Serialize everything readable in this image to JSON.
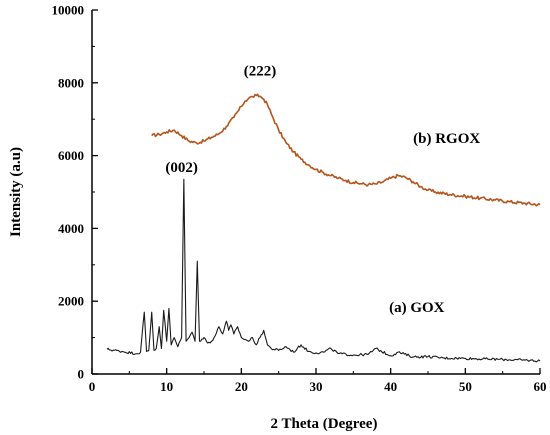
{
  "chart_data": {
    "type": "line",
    "title": "",
    "xlabel": "2 Theta (Degree)",
    "ylabel": "Intensity (a.u)",
    "xlim": [
      0,
      60
    ],
    "ylim": [
      0,
      10000
    ],
    "x_ticks": [
      0,
      10,
      20,
      30,
      40,
      50,
      60
    ],
    "y_ticks": [
      0,
      2000,
      4000,
      6000,
      8000,
      10000
    ],
    "grid": false,
    "legend": "none",
    "annotations": [
      {
        "text": "(222)",
        "x": 22.5,
        "y": 8200
      },
      {
        "text": "(002)",
        "x": 12.0,
        "y": 5550
      },
      {
        "text": "(b) RGOX",
        "x": 47.5,
        "y": 6350
      },
      {
        "text": "(a) GOX",
        "x": 43.5,
        "y": 1700
      }
    ],
    "series": [
      {
        "name": "(b) RGOX",
        "color": "#b5541c",
        "x": [
          8,
          9,
          10,
          11,
          12,
          13,
          14,
          15,
          16,
          17,
          18,
          19,
          20,
          20.5,
          21,
          21.5,
          22,
          22.5,
          23,
          23.5,
          24,
          25,
          26,
          27,
          28,
          29,
          30,
          31,
          32,
          33,
          34,
          35,
          36,
          37,
          38,
          39,
          40,
          41,
          42,
          43,
          44,
          45,
          46,
          48,
          50,
          52,
          54,
          56,
          58,
          60
        ],
        "y": [
          6550,
          6580,
          6650,
          6700,
          6550,
          6400,
          6350,
          6400,
          6500,
          6600,
          6800,
          7050,
          7350,
          7500,
          7580,
          7620,
          7650,
          7630,
          7550,
          7400,
          7150,
          6700,
          6350,
          6100,
          5900,
          5750,
          5620,
          5530,
          5450,
          5380,
          5320,
          5260,
          5230,
          5200,
          5220,
          5280,
          5380,
          5450,
          5400,
          5280,
          5150,
          5050,
          5000,
          4930,
          4880,
          4830,
          4780,
          4730,
          4690,
          4650
        ]
      },
      {
        "name": "(a) GOX",
        "color": "#1a1a1a",
        "x": [
          2,
          4,
          6,
          6.5,
          7,
          7.3,
          7.6,
          8,
          8.3,
          8.6,
          9,
          9.3,
          9.6,
          10,
          10.3,
          10.6,
          11,
          11.5,
          12,
          12.3,
          12.6,
          13,
          13.4,
          13.8,
          14.1,
          14.4,
          15,
          15.5,
          16,
          16.5,
          17,
          17.5,
          18,
          18.3,
          18.6,
          19,
          19.5,
          20,
          20.5,
          21,
          21.5,
          22,
          22.5,
          23,
          23.5,
          24,
          25,
          26,
          27,
          28,
          29,
          30,
          31,
          32,
          33,
          35,
          37,
          38,
          40,
          41,
          43,
          45,
          47,
          50,
          53,
          55,
          58,
          60
        ],
        "y": [
          680,
          620,
          560,
          600,
          1700,
          620,
          640,
          1700,
          650,
          700,
          1300,
          700,
          1750,
          900,
          1800,
          800,
          1000,
          750,
          1000,
          5350,
          900,
          1000,
          1150,
          900,
          3100,
          900,
          1000,
          850,
          900,
          1050,
          1300,
          1100,
          1450,
          1200,
          1350,
          1100,
          1300,
          1000,
          950,
          900,
          1000,
          800,
          1000,
          1200,
          800,
          700,
          650,
          750,
          600,
          800,
          620,
          580,
          600,
          700,
          560,
          520,
          540,
          700,
          500,
          600,
          470,
          480,
          440,
          430,
          410,
          400,
          380,
          360
        ]
      }
    ]
  }
}
